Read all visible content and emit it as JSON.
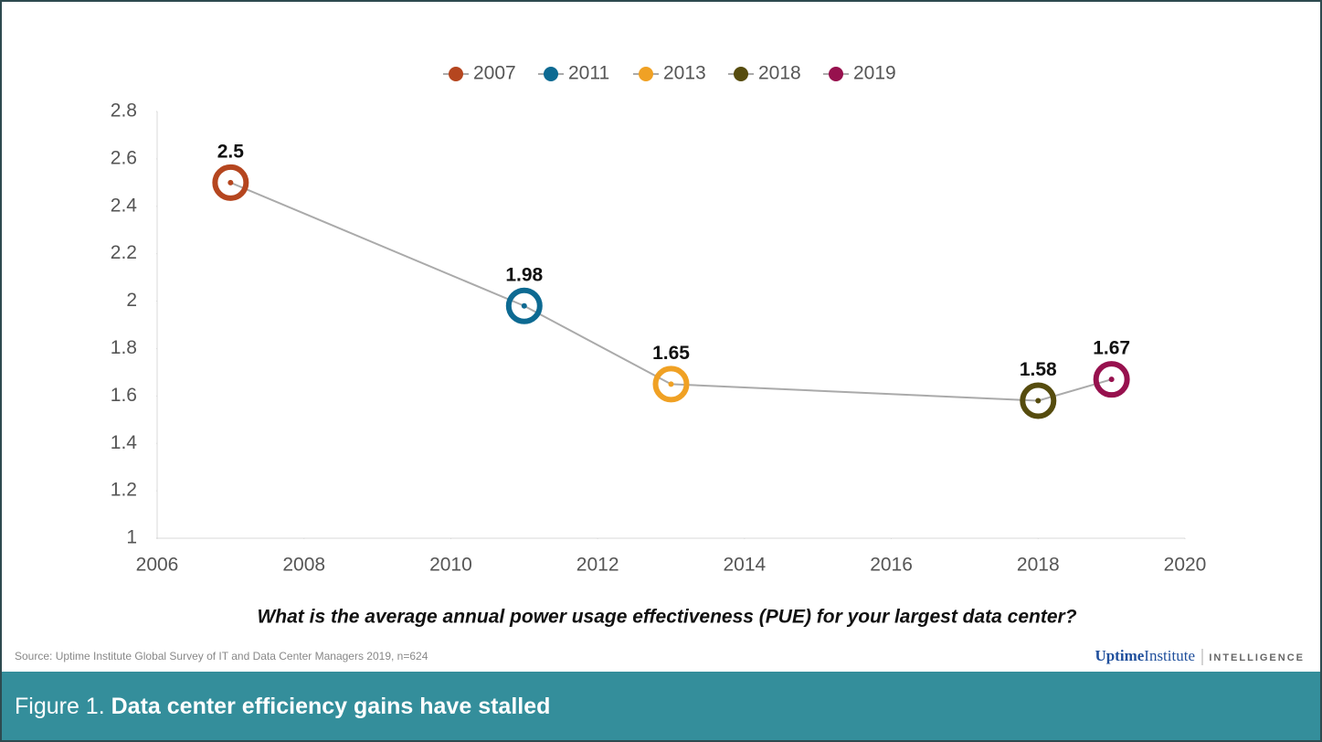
{
  "chart_data": {
    "type": "line",
    "x_label": "What is the average annual power usage effectiveness (PUE) for your largest data center?",
    "series": [
      {
        "name": "2007",
        "color": "#b5461f",
        "x": [
          2007
        ],
        "values": [
          2.5
        ]
      },
      {
        "name": "2011",
        "color": "#0d6a92",
        "x": [
          2011
        ],
        "values": [
          1.98
        ]
      },
      {
        "name": "2013",
        "color": "#f0a124",
        "x": [
          2013
        ],
        "values": [
          1.65
        ]
      },
      {
        "name": "2018",
        "color": "#564c0e",
        "x": [
          2018
        ],
        "values": [
          1.58
        ]
      },
      {
        "name": "2019",
        "color": "#97114e",
        "x": [
          2019
        ],
        "values": [
          1.67
        ]
      }
    ],
    "line_color": "#aaaaaa",
    "xlim": [
      2006,
      2020
    ],
    "xticks": [
      2006,
      2008,
      2010,
      2012,
      2014,
      2016,
      2018,
      2020
    ],
    "ylim": [
      1,
      2.8
    ],
    "yticks": [
      1,
      1.2,
      1.4,
      1.6,
      1.8,
      2,
      2.2,
      2.4,
      2.6,
      2.8
    ],
    "legend": "top"
  },
  "source": "Source: Uptime Institute Global Survey of IT and Data Center Managers 2019, n=624",
  "logo": {
    "name": "Uptime",
    "suffix": "Institute",
    "unit": "INTELLIGENCE"
  },
  "caption": {
    "label": "Figure 1.",
    "title": "Data center efficiency gains have stalled"
  }
}
